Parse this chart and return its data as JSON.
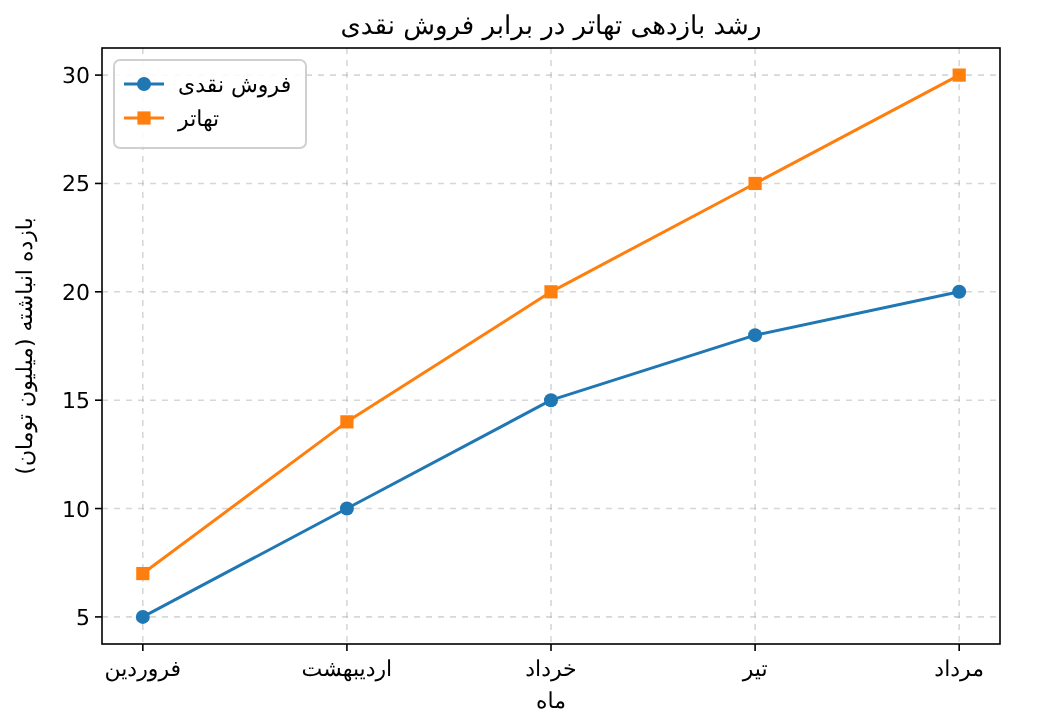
{
  "chart_data": {
    "type": "line",
    "title": "رشد بازدهی تهاتر در برابر فروش نقدی",
    "xlabel": "ماه",
    "ylabel": "بازده انباشته (میلیون تومان)",
    "categories": [
      "فروردین",
      "اردیبهشت",
      "خرداد",
      "تیر",
      "مرداد"
    ],
    "series": [
      {
        "name": "فروش نقدی",
        "color": "#1f77b4",
        "marker": "circle",
        "values": [
          5,
          10,
          15,
          18,
          20
        ]
      },
      {
        "name": "تهاتر",
        "color": "#ff7f0e",
        "marker": "square",
        "values": [
          7,
          14,
          20,
          25,
          30
        ]
      }
    ],
    "ylim": [
      3.75,
      31.25
    ],
    "yticks": [
      5,
      10,
      15,
      20,
      25,
      30
    ],
    "grid": true,
    "legend": "top left",
    "line_style": "solid"
  }
}
